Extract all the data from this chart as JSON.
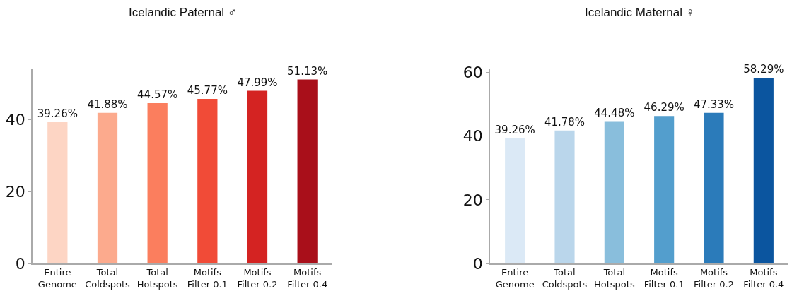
{
  "chart_data": [
    {
      "type": "bar",
      "title": "Icelandic Paternal ♂",
      "categories": [
        "Entire\nGenome",
        "Total\nColdspots",
        "Total\nHotspots",
        "Motifs\nFilter 0.1",
        "Motifs\nFilter 0.2",
        "Motifs\nFilter 0.4"
      ],
      "values": [
        39.26,
        41.88,
        44.57,
        45.77,
        47.99,
        51.13
      ],
      "value_labels": [
        "39.26%",
        "41.88%",
        "44.57%",
        "45.77%",
        "47.99%",
        "51.13%"
      ],
      "colors": [
        "#fdd5c4",
        "#fcaa8d",
        "#fb7e5e",
        "#f14b37",
        "#d42322",
        "#a90f1a"
      ],
      "ylim": [
        0,
        54
      ],
      "yticks": [
        0,
        20,
        40
      ]
    },
    {
      "type": "bar",
      "title": "Icelandic Maternal ♀",
      "categories": [
        "Entire\nGenome",
        "Total\nColdspots",
        "Total\nHotspots",
        "Motifs\nFilter 0.1",
        "Motifs\nFilter 0.2",
        "Motifs\nFilter 0.4"
      ],
      "values": [
        39.26,
        41.78,
        44.48,
        46.29,
        47.33,
        58.29
      ],
      "value_labels": [
        "39.26%",
        "41.78%",
        "44.48%",
        "46.29%",
        "47.33%",
        "58.29%"
      ],
      "colors": [
        "#dbe9f6",
        "#bad6eb",
        "#89bedc",
        "#539ecd",
        "#2b7bba",
        "#0b559f"
      ],
      "ylim": [
        0,
        61
      ],
      "yticks": [
        0,
        20,
        40,
        60
      ]
    }
  ]
}
